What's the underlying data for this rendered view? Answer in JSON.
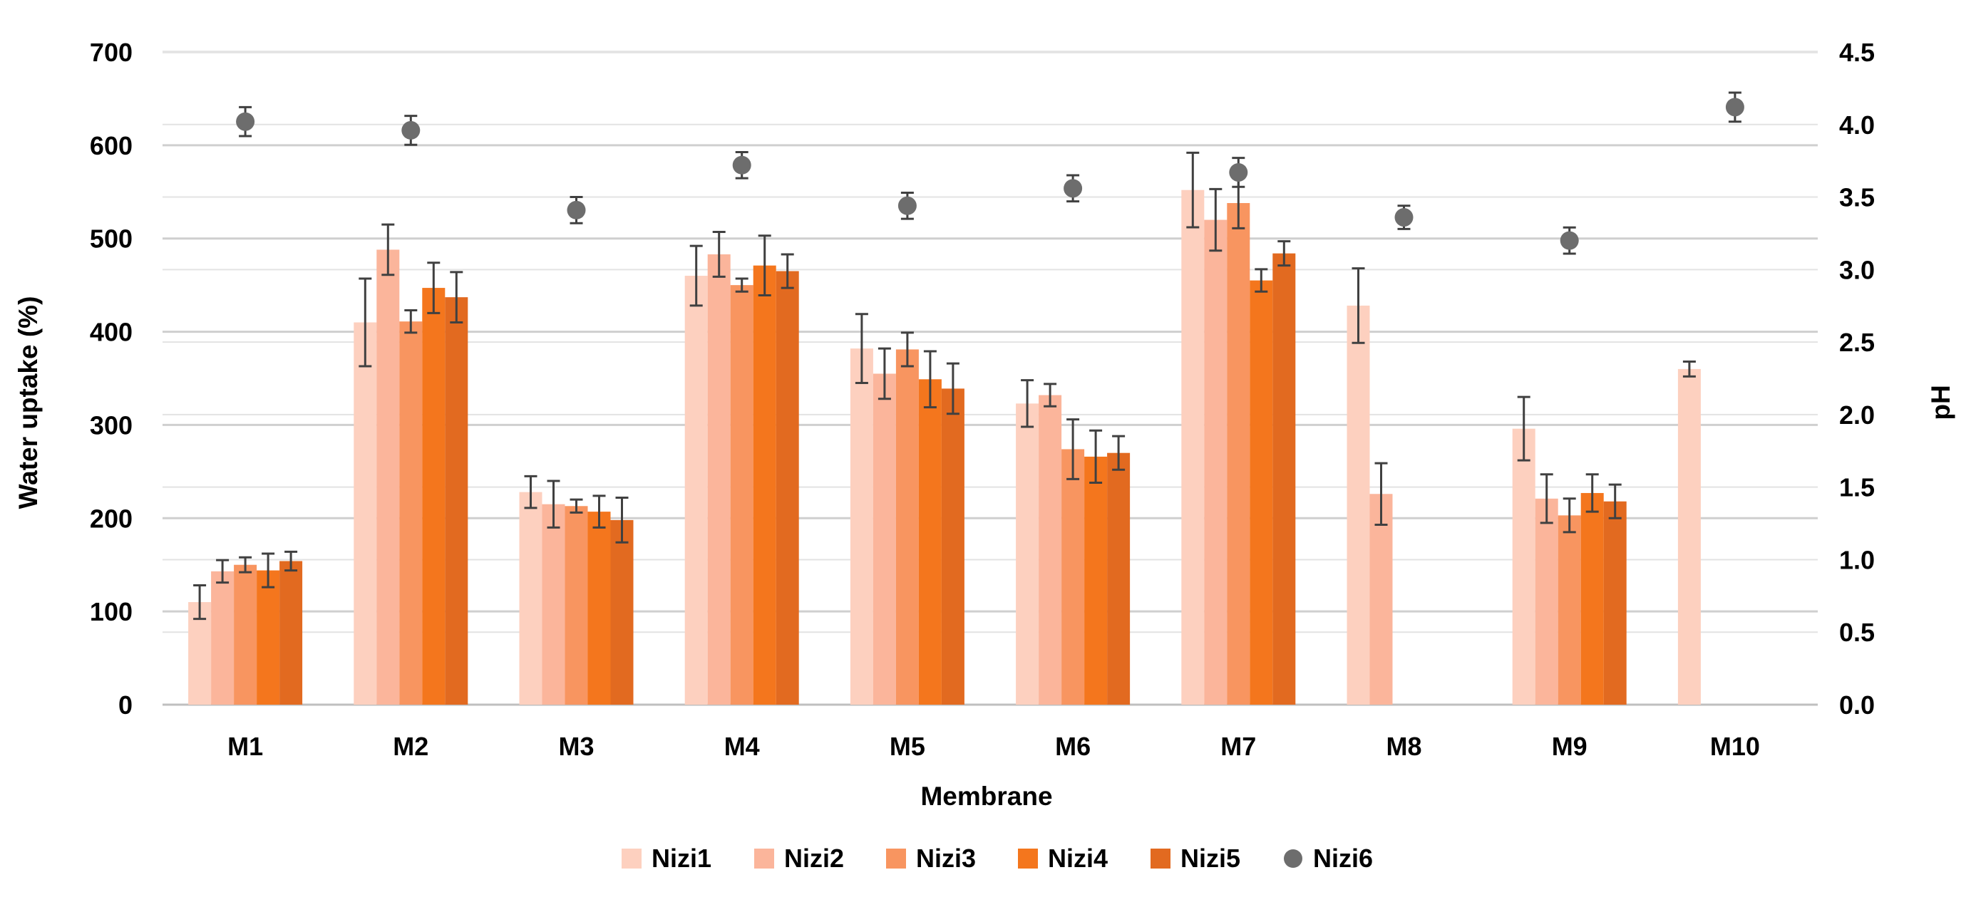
{
  "chart_data": {
    "type": "bar",
    "title": "",
    "xlabel": "Membrane",
    "ylabel": "Water uptake (%)",
    "y2label": "pH",
    "categories": [
      "M1",
      "M2",
      "M3",
      "M4",
      "M5",
      "M6",
      "M7",
      "M8",
      "M9",
      "M10"
    ],
    "ylim": [
      0,
      700
    ],
    "yticks": [
      "0",
      "100",
      "200",
      "300",
      "400",
      "500",
      "600",
      "700"
    ],
    "y2lim": [
      0,
      4.5
    ],
    "y2ticks": [
      "0.0",
      "0.5",
      "1.0",
      "1.5",
      "2.0",
      "2.5",
      "3.0",
      "3.5",
      "4.0",
      "4.5"
    ],
    "legend_position": "bottom",
    "series": [
      {
        "name": "Nizi1",
        "kind": "bar",
        "axis": "left",
        "color": "#fdd0bf",
        "values": [
          110,
          410,
          228,
          460,
          382,
          323,
          552,
          428,
          296,
          360
        ],
        "errors": [
          18,
          47,
          17,
          32,
          37,
          25,
          40,
          40,
          34,
          8
        ]
      },
      {
        "name": "Nizi2",
        "kind": "bar",
        "axis": "left",
        "color": "#fbb59b",
        "values": [
          143,
          488,
          215,
          483,
          355,
          332,
          520,
          226,
          221,
          null
        ],
        "errors": [
          12,
          27,
          25,
          24,
          27,
          12,
          33,
          33,
          26,
          null
        ]
      },
      {
        "name": "Nizi3",
        "kind": "bar",
        "axis": "left",
        "color": "#f89560",
        "values": [
          150,
          411,
          213,
          450,
          381,
          274,
          538,
          null,
          203,
          null
        ],
        "errors": [
          8,
          12,
          7,
          7,
          18,
          32,
          27,
          null,
          18,
          null
        ]
      },
      {
        "name": "Nizi4",
        "kind": "bar",
        "axis": "left",
        "color": "#f4761d",
        "values": [
          144,
          447,
          207,
          471,
          349,
          266,
          455,
          null,
          227,
          null
        ],
        "errors": [
          18,
          27,
          17,
          32,
          30,
          28,
          12,
          null,
          20,
          null
        ]
      },
      {
        "name": "Nizi5",
        "kind": "bar",
        "axis": "left",
        "color": "#e26a20",
        "values": [
          154,
          437,
          198,
          465,
          339,
          270,
          484,
          null,
          218,
          null
        ],
        "errors": [
          10,
          27,
          24,
          18,
          27,
          18,
          13,
          null,
          18,
          null
        ]
      },
      {
        "name": "Nizi6",
        "kind": "point",
        "axis": "right",
        "color": "#6d6d6d",
        "values": [
          4.02,
          3.96,
          3.41,
          3.72,
          3.44,
          3.56,
          3.67,
          3.36,
          3.2,
          4.12
        ],
        "errors": [
          0.1,
          0.1,
          0.09,
          0.09,
          0.09,
          0.09,
          0.1,
          0.08,
          0.09,
          0.1
        ]
      }
    ]
  }
}
